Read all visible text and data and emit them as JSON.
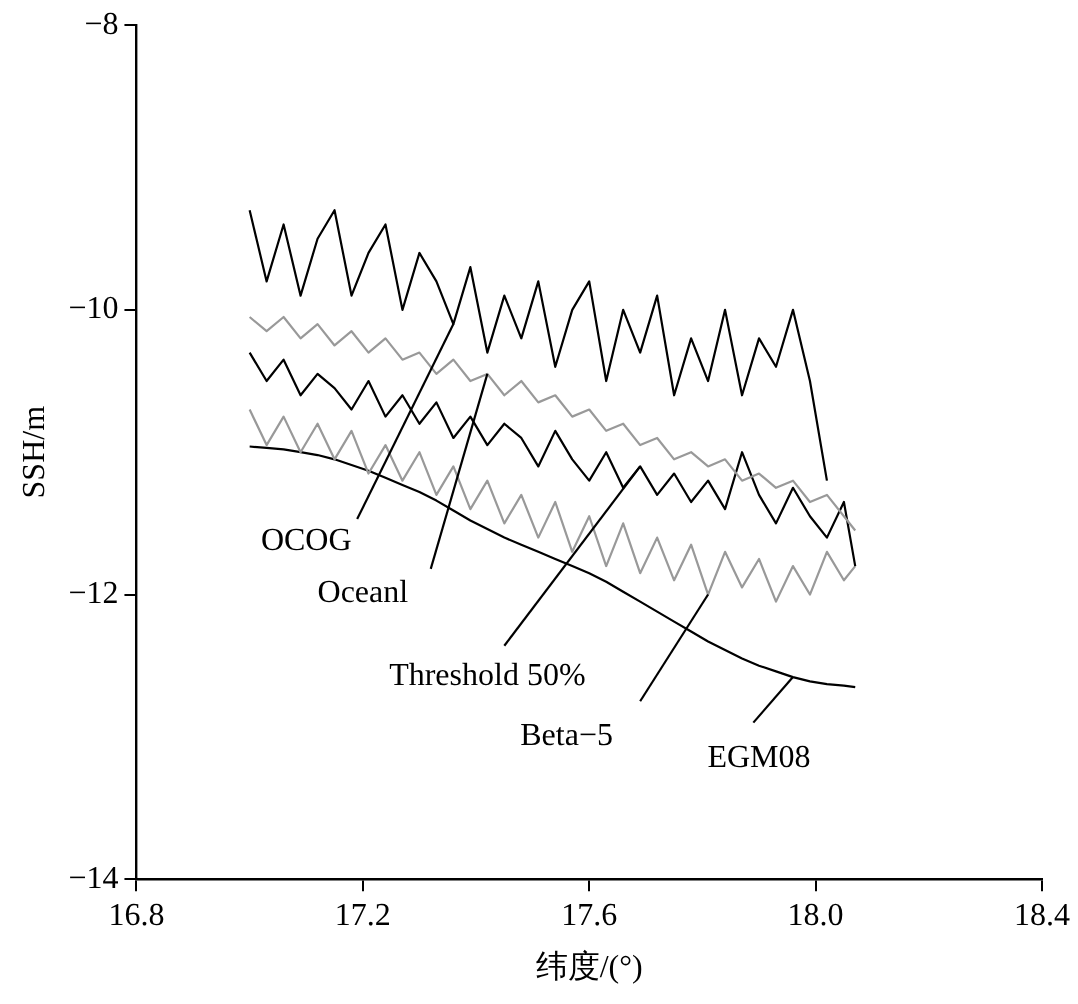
{
  "chart_data": {
    "type": "line",
    "xlabel": "纬度/(°)",
    "ylabel": "SSH/m",
    "x": [
      17.0,
      17.03,
      17.06,
      17.09,
      17.12,
      17.15,
      17.18,
      17.21,
      17.24,
      17.27,
      17.3,
      17.33,
      17.36,
      17.39,
      17.42,
      17.45,
      17.48,
      17.51,
      17.54,
      17.57,
      17.6,
      17.63,
      17.66,
      17.69,
      17.72,
      17.75,
      17.78,
      17.81,
      17.84,
      17.87,
      17.9,
      17.93,
      17.96,
      17.99,
      18.02,
      18.05,
      18.07
    ],
    "series": [
      {
        "name": "OCOG",
        "color": "#000000",
        "values": [
          -9.3,
          -9.8,
          -9.4,
          -9.9,
          -9.5,
          -9.3,
          -9.9,
          -9.6,
          -9.4,
          -10.0,
          -9.6,
          -9.8,
          -10.1,
          -9.7,
          -10.3,
          -9.9,
          -10.2,
          -9.8,
          -10.4,
          -10.0,
          -9.8,
          -10.5,
          -10.0,
          -10.3,
          -9.9,
          -10.6,
          -10.2,
          -10.5,
          -10.0,
          -10.6,
          -10.2,
          -10.4,
          -10.0,
          -10.5,
          -11.2,
          null,
          null
        ]
      },
      {
        "name": "Oceanl",
        "color": "#999999",
        "values": [
          -10.05,
          -10.15,
          -10.05,
          -10.2,
          -10.1,
          -10.25,
          -10.15,
          -10.3,
          -10.2,
          -10.35,
          -10.3,
          -10.45,
          -10.35,
          -10.5,
          -10.45,
          -10.6,
          -10.5,
          -10.65,
          -10.6,
          -10.75,
          -10.7,
          -10.85,
          -10.8,
          -10.95,
          -10.9,
          -11.05,
          -11.0,
          -11.1,
          -11.05,
          -11.2,
          -11.15,
          -11.25,
          -11.2,
          -11.35,
          -11.3,
          -11.45,
          -11.55
        ]
      },
      {
        "name": "Threshold 50%",
        "color": "#000000",
        "values": [
          -10.3,
          -10.5,
          -10.35,
          -10.6,
          -10.45,
          -10.55,
          -10.7,
          -10.5,
          -10.75,
          -10.6,
          -10.8,
          -10.65,
          -10.9,
          -10.75,
          -10.95,
          -10.8,
          -10.9,
          -11.1,
          -10.85,
          -11.05,
          -11.2,
          -11.0,
          -11.25,
          -11.1,
          -11.3,
          -11.15,
          -11.35,
          -11.2,
          -11.4,
          -11.0,
          -11.3,
          -11.5,
          -11.25,
          -11.45,
          -11.6,
          -11.35,
          -11.8
        ]
      },
      {
        "name": "Beta−5",
        "color": "#999999",
        "values": [
          -10.7,
          -10.95,
          -10.75,
          -11.0,
          -10.8,
          -11.05,
          -10.85,
          -11.15,
          -10.95,
          -11.2,
          -11.0,
          -11.3,
          -11.1,
          -11.4,
          -11.2,
          -11.5,
          -11.3,
          -11.6,
          -11.35,
          -11.7,
          -11.45,
          -11.8,
          -11.5,
          -11.85,
          -11.6,
          -11.9,
          -11.65,
          -12.0,
          -11.7,
          -11.95,
          -11.75,
          -12.05,
          -11.8,
          -12.0,
          -11.7,
          -11.9,
          -11.8
        ]
      },
      {
        "name": "EGM08",
        "color": "#000000",
        "values": [
          -10.96,
          -10.97,
          -10.98,
          -11.0,
          -11.02,
          -11.05,
          -11.09,
          -11.13,
          -11.18,
          -11.23,
          -11.28,
          -11.34,
          -11.41,
          -11.48,
          -11.54,
          -11.6,
          -11.65,
          -11.7,
          -11.75,
          -11.8,
          -11.85,
          -11.91,
          -11.98,
          -12.05,
          -12.12,
          -12.19,
          -12.26,
          -12.33,
          -12.39,
          -12.45,
          -12.5,
          -12.54,
          -12.58,
          -12.61,
          -12.63,
          -12.64,
          -12.65
        ]
      }
    ],
    "xlim": [
      16.8,
      18.4
    ],
    "xticks": [
      16.8,
      17.2,
      17.6,
      {
        "value": 18,
        "label": "18.0"
      },
      18.4
    ],
    "ylim": [
      -14,
      -8
    ],
    "yticks": [
      -14,
      -12,
      -10,
      -8
    ],
    "grid": false,
    "legend": "bottom right",
    "marker": "none",
    "line_style": "solid"
  }
}
